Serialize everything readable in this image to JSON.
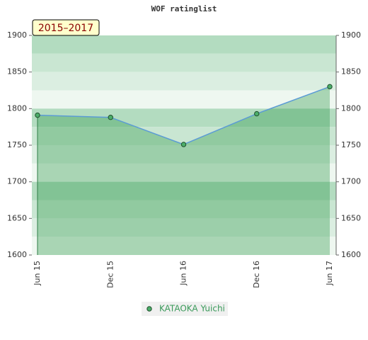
{
  "chart_data": {
    "type": "line",
    "title": "WOF ratinglist",
    "annotation": "2015–2017",
    "categories": [
      "Jun 15",
      "Dec 15",
      "Jun 16",
      "Dec 16",
      "Jun 17"
    ],
    "series": [
      {
        "name": "KATAOKA Yuichi",
        "color": "#5b9bd5",
        "values": [
          1791,
          1788,
          1751,
          1793,
          1830
        ]
      }
    ],
    "ylim": [
      1600,
      1900
    ],
    "yticks": [
      1600,
      1650,
      1700,
      1750,
      1800,
      1850,
      1900
    ],
    "y2lim": [
      1600,
      1900
    ],
    "y2ticks": [
      1600,
      1650,
      1700,
      1750,
      1800,
      1850,
      1900
    ],
    "legend": "bottom"
  }
}
